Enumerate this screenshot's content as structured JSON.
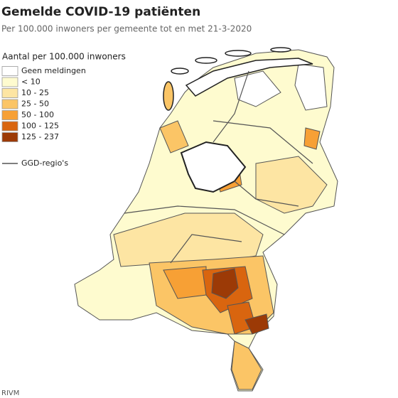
{
  "title": "Gemelde COVID-19 patiënten",
  "subtitle": "Per 100.000 inwoners per gemeente tot en met 21-3-2020",
  "legend": {
    "title": "Aantal per 100.000 inwoners",
    "items": [
      {
        "label": "Geen meldingen",
        "color": "#ffffff"
      },
      {
        "label": "< 10",
        "color": "#fefbcf"
      },
      {
        "label": "10 - 25",
        "color": "#fde5a3"
      },
      {
        "label": "25 - 50",
        "color": "#fbc566"
      },
      {
        "label": "50 - 100",
        "color": "#f7a035"
      },
      {
        "label": "100 - 125",
        "color": "#d9650f"
      },
      {
        "label": "125 - 237",
        "color": "#9c3a06"
      }
    ]
  },
  "ggd_label": "GGD-regio's",
  "source": "RIVM"
}
